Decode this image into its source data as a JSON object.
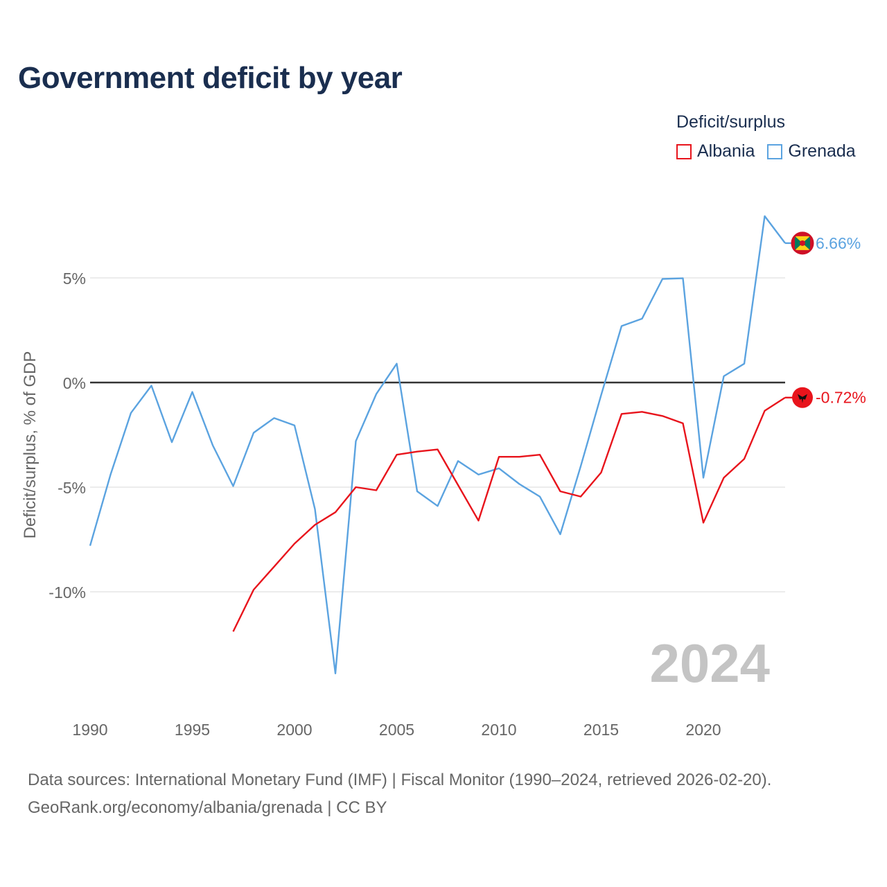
{
  "title": "Government deficit by year",
  "legend": {
    "title": "Deficit/surplus",
    "items": [
      {
        "name": "Albania",
        "color": "#e8141c"
      },
      {
        "name": "Grenada",
        "color": "#5ba3e0"
      }
    ]
  },
  "watermark_year": "2024",
  "footer": {
    "line1": "Data sources: International Monetary Fund (IMF) | Fiscal Monitor (1990–2024, retrieved 2026-02-20).",
    "line2": "GeoRank.org/economy/albania/grenada | CC BY"
  },
  "chart_data": {
    "type": "line",
    "title": "Government deficit by year",
    "xlabel": "",
    "ylabel": "Deficit/surplus, % of GDP",
    "xlim": [
      1990,
      2024
    ],
    "ylim": [
      -15,
      9
    ],
    "xticks": [
      1990,
      1995,
      2000,
      2005,
      2010,
      2015,
      2020
    ],
    "xtick_labels": [
      "1990",
      "1995",
      "2000",
      "2005",
      "2010",
      "2015",
      "2020"
    ],
    "yticks": [
      5,
      0,
      -5,
      -10
    ],
    "ytick_labels": [
      "5%",
      "0%",
      "-5%",
      "-10%"
    ],
    "grid": true,
    "zero_line": true,
    "series": [
      {
        "name": "Albania",
        "color": "#e8141c",
        "end_label": "-0.72%",
        "flag": "albania-flag",
        "x": [
          1997,
          1998,
          1999,
          2000,
          2001,
          2002,
          2003,
          2004,
          2005,
          2006,
          2007,
          2008,
          2009,
          2010,
          2011,
          2012,
          2013,
          2014,
          2015,
          2016,
          2017,
          2018,
          2019,
          2020,
          2021,
          2022,
          2023,
          2024
        ],
        "values": [
          -11.9,
          -9.9,
          -8.8,
          -7.7,
          -6.8,
          -6.2,
          -5.0,
          -5.15,
          -3.45,
          -3.3,
          -3.2,
          -4.9,
          -6.6,
          -3.55,
          -3.55,
          -3.45,
          -5.2,
          -5.45,
          -4.3,
          -1.5,
          -1.4,
          -1.6,
          -1.95,
          -6.7,
          -4.55,
          -3.65,
          -1.35,
          -0.72
        ]
      },
      {
        "name": "Grenada",
        "color": "#5ba3e0",
        "end_label": "6.66%",
        "flag": "grenada-flag",
        "x": [
          1990,
          1991,
          1992,
          1993,
          1994,
          1995,
          1996,
          1997,
          1998,
          1999,
          2000,
          2001,
          2002,
          2003,
          2004,
          2005,
          2006,
          2007,
          2008,
          2009,
          2010,
          2011,
          2012,
          2013,
          2014,
          2015,
          2016,
          2017,
          2018,
          2019,
          2020,
          2021,
          2022,
          2023,
          2024
        ],
        "values": [
          -7.8,
          -4.4,
          -1.45,
          -0.15,
          -2.85,
          -0.45,
          -3.0,
          -4.95,
          -2.4,
          -1.7,
          -2.05,
          -6.05,
          -13.9,
          -2.8,
          -0.55,
          0.9,
          -5.2,
          -5.9,
          -3.75,
          -4.4,
          -4.1,
          -4.85,
          -5.45,
          -7.25,
          -4.0,
          -0.6,
          2.7,
          3.05,
          4.95,
          4.98,
          -4.55,
          0.3,
          0.9,
          7.95,
          6.66
        ]
      }
    ]
  }
}
